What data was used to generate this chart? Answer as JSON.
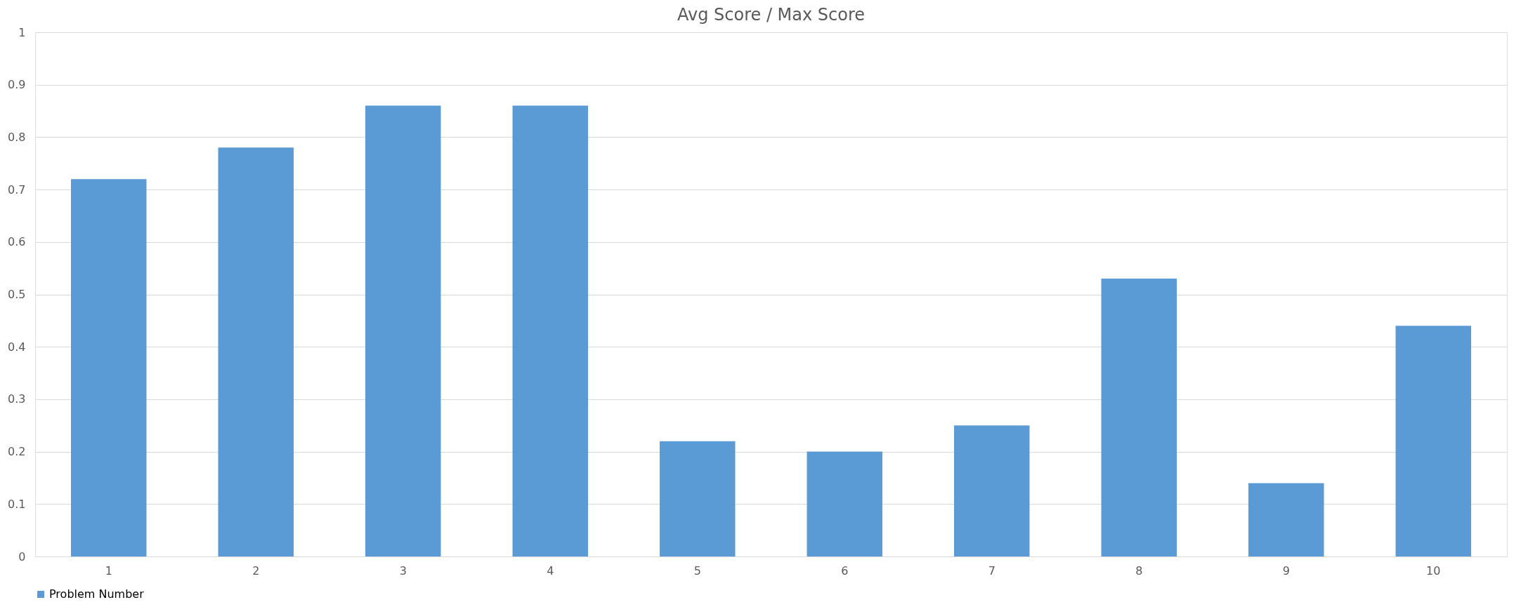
{
  "chart_data": {
    "type": "bar",
    "title": "Avg Score / Max Score",
    "categories": [
      "1",
      "2",
      "3",
      "4",
      "5",
      "6",
      "7",
      "8",
      "9",
      "10"
    ],
    "series": [
      {
        "name": "Problem Number",
        "color": "#5b9bd5",
        "values": [
          0.72,
          0.78,
          0.86,
          0.86,
          0.22,
          0.2,
          0.25,
          0.53,
          0.14,
          0.44
        ]
      }
    ],
    "ylim": [
      0,
      1
    ],
    "yticks": [
      0,
      0.1,
      0.2,
      0.3,
      0.4,
      0.5,
      0.6,
      0.7,
      0.8,
      0.9,
      1
    ],
    "grid": "y",
    "legend": "bottom"
  }
}
